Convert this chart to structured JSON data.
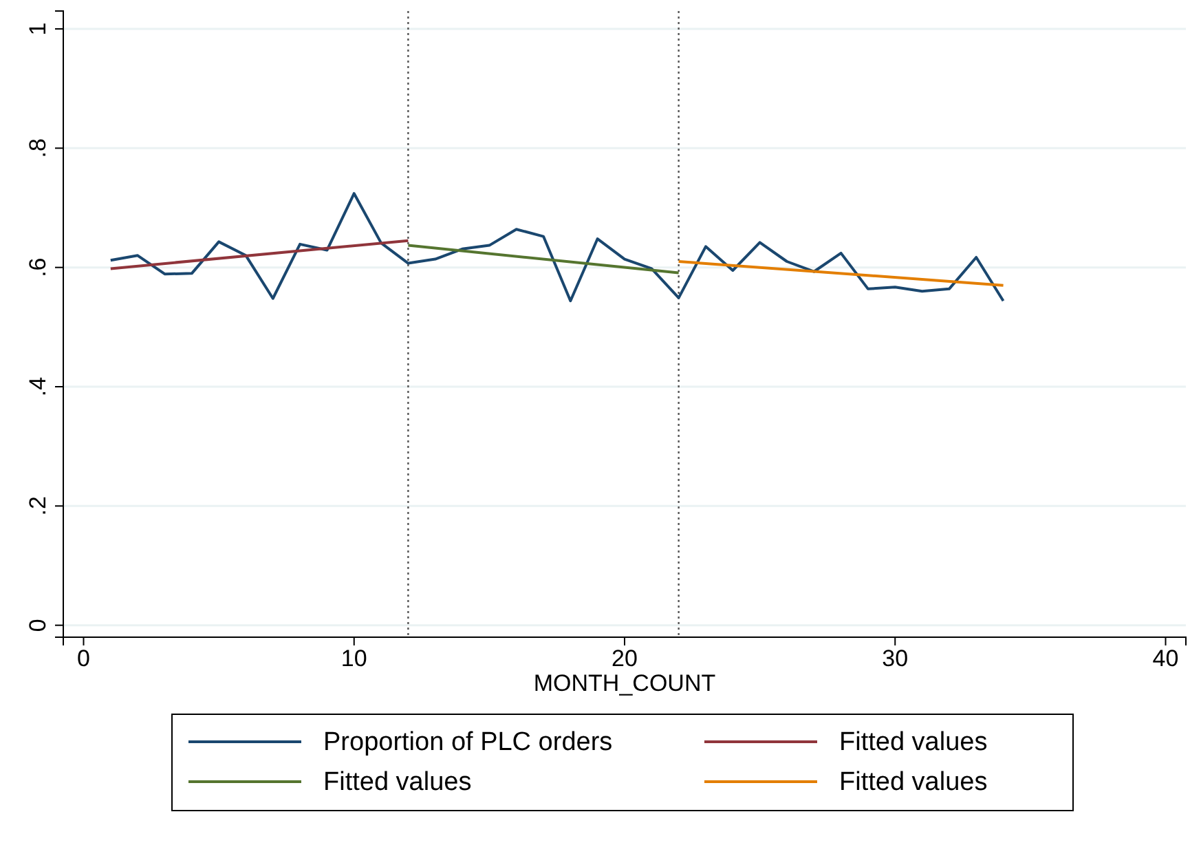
{
  "chart_data": {
    "type": "line",
    "xlabel": "MONTH_COUNT",
    "xlim": [
      -0.75,
      40.75
    ],
    "xticks": [
      0,
      10,
      20,
      30,
      40
    ],
    "ylim": [
      -0.02,
      1.03
    ],
    "yticks": [
      {
        "value": 0,
        "label": "0"
      },
      {
        "value": 0.2,
        "label": ".2"
      },
      {
        "value": 0.4,
        "label": ".4"
      },
      {
        "value": 0.6,
        "label": ".6"
      },
      {
        "value": 0.8,
        "label": ".8"
      },
      {
        "value": 1,
        "label": "1"
      }
    ],
    "grid": "y",
    "legend": "bottom",
    "marker": "none",
    "line_style": "solid",
    "series": [
      {
        "name": "Proportion of PLC orders",
        "color": "#1a476f",
        "x": [
          1,
          2,
          3,
          4,
          5,
          6,
          7,
          8,
          9,
          10,
          11,
          12,
          13,
          14,
          15,
          16,
          17,
          18,
          19,
          20,
          21,
          22,
          23,
          24,
          25,
          26,
          27,
          28,
          29,
          30,
          31,
          32,
          33,
          34
        ],
        "values": [
          0.612,
          0.62,
          0.589,
          0.59,
          0.643,
          0.62,
          0.548,
          0.639,
          0.629,
          0.724,
          0.641,
          0.607,
          0.614,
          0.631,
          0.637,
          0.664,
          0.652,
          0.544,
          0.648,
          0.614,
          0.598,
          0.549,
          0.635,
          0.595,
          0.642,
          0.61,
          0.593,
          0.624,
          0.564,
          0.567,
          0.56,
          0.564,
          0.617,
          0.544
        ]
      },
      {
        "name": "Fitted values",
        "color": "#90353b",
        "x": [
          1,
          12
        ],
        "values": [
          0.598,
          0.645
        ]
      },
      {
        "name": "Fitted values",
        "color": "#55752f",
        "x": [
          12,
          22
        ],
        "values": [
          0.637,
          0.591
        ]
      },
      {
        "name": "Fitted values",
        "color": "#e37e00",
        "x": [
          22,
          34
        ],
        "values": [
          0.61,
          0.57
        ]
      }
    ],
    "ref_lines": [
      {
        "axis": "x",
        "value": 12,
        "color": "#555555",
        "line_style": "dotted"
      },
      {
        "axis": "x",
        "value": 22,
        "color": "#555555",
        "line_style": "dotted"
      }
    ]
  }
}
